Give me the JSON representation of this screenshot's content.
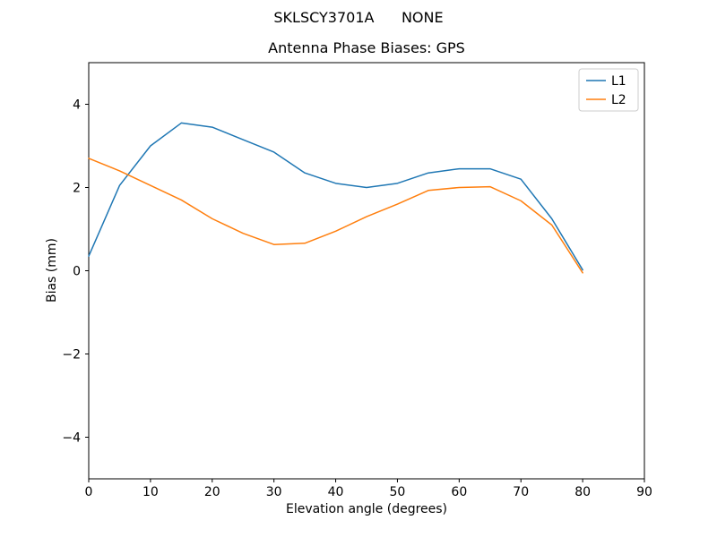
{
  "chart_data": {
    "type": "line",
    "suptitle": "SKLSCY3701A      NONE",
    "title": "Antenna Phase Biases: GPS",
    "xlabel": "Elevation angle (degrees)",
    "ylabel": "Bias (mm)",
    "xlim": [
      0,
      90
    ],
    "ylim": [
      -5,
      5
    ],
    "xticks": [
      0,
      10,
      20,
      30,
      40,
      50,
      60,
      70,
      80,
      90
    ],
    "yticks": [
      -4,
      -2,
      0,
      2,
      4
    ],
    "grid": false,
    "legend_position": "upper right",
    "x": [
      0,
      5,
      10,
      15,
      20,
      25,
      30,
      35,
      40,
      45,
      50,
      55,
      60,
      65,
      70,
      75,
      80
    ],
    "series": [
      {
        "name": "L1",
        "color": "#1f77b4",
        "values": [
          0.35,
          2.05,
          3.0,
          3.55,
          3.45,
          3.15,
          2.85,
          2.35,
          2.1,
          2.0,
          2.1,
          2.35,
          2.45,
          2.45,
          2.2,
          1.25,
          0.02
        ]
      },
      {
        "name": "L2",
        "color": "#ff7f0e",
        "values": [
          2.7,
          2.4,
          2.05,
          1.7,
          1.25,
          0.9,
          0.63,
          0.66,
          0.95,
          1.3,
          1.6,
          1.93,
          2.0,
          2.02,
          1.68,
          1.1,
          -0.05
        ]
      }
    ]
  }
}
